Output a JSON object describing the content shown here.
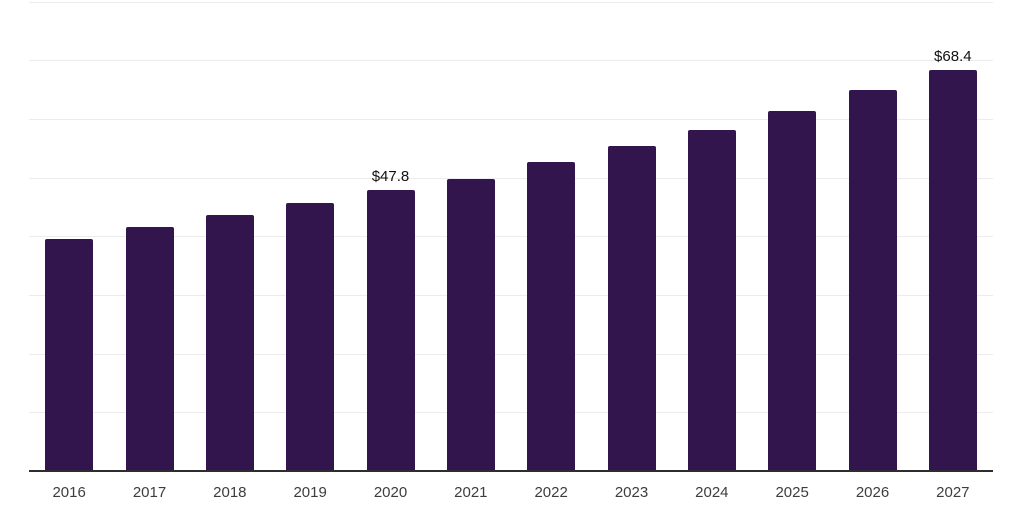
{
  "chart_data": {
    "type": "bar",
    "title": "",
    "xlabel": "",
    "ylabel": "",
    "categories": [
      "2016",
      "2017",
      "2018",
      "2019",
      "2020",
      "2021",
      "2022",
      "2023",
      "2024",
      "2025",
      "2026",
      "2027"
    ],
    "values": [
      39.6,
      41.5,
      43.6,
      45.6,
      47.8,
      49.7,
      52.6,
      55.3,
      58.1,
      61.4,
      64.9,
      68.4
    ],
    "bar_labels": [
      "",
      "",
      "",
      "",
      "$47.8",
      "",
      "",
      "",
      "",
      "",
      "",
      "$68.4"
    ],
    "ylim": [
      0,
      80
    ],
    "gridline_step": 10,
    "grid": "horizontal",
    "legend": "none",
    "y_tick_labels_visible": false,
    "bar_color": "#32154d",
    "axis_color": "#2d2d2d",
    "gridline_color": "#ececec",
    "tick_label_color": "#3d3d3d",
    "data_label_color": "#111111",
    "background": "#ffffff"
  }
}
